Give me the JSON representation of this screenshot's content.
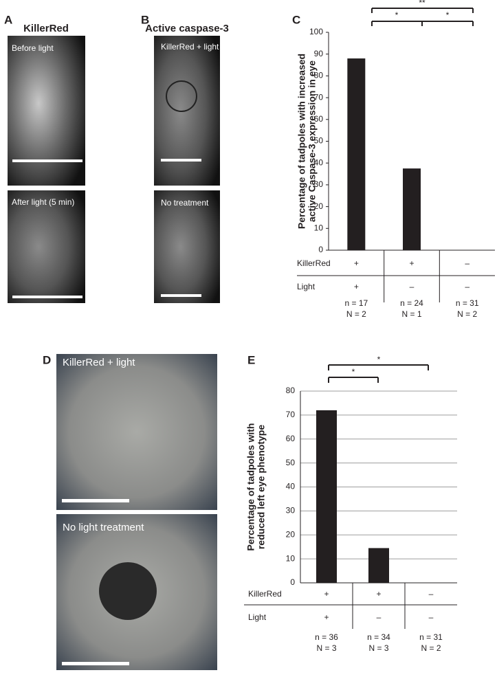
{
  "panels": {
    "A": {
      "label": "A",
      "title": "KillerRed",
      "captions": [
        "Before light",
        "After light (5 min)"
      ]
    },
    "B": {
      "label": "B",
      "title": "Active caspase-3",
      "captions": [
        "KillerRed + light",
        "No treatment"
      ]
    },
    "D": {
      "label": "D",
      "captions": [
        "KillerRed + light",
        "No light treatment"
      ]
    }
  },
  "chart_data": [
    {
      "type": "bar",
      "label": "C",
      "y_label": [
        "Percentage of tadpoles with increased",
        "active Caspase-3 expression in eye"
      ],
      "values": [
        88,
        37.5,
        0
      ],
      "color": "#231f20",
      "ylim": [
        0,
        100
      ],
      "yticks": [
        0,
        10,
        20,
        30,
        40,
        50,
        60,
        70,
        80,
        90,
        100
      ],
      "grid": false,
      "table": [
        {
          "label": "KillerRed",
          "cells": [
            "+",
            "+",
            "–"
          ]
        },
        {
          "label": "Light",
          "cells": [
            "+",
            "–",
            "–"
          ]
        }
      ],
      "n_labels": [
        [
          "n = 17",
          "N = 2"
        ],
        [
          "n = 24",
          "N = 1"
        ],
        [
          "n = 31",
          "N = 2"
        ]
      ],
      "significance": [
        "**",
        "*",
        "*"
      ]
    },
    {
      "type": "bar",
      "label": "E",
      "y_label": [
        "Percentage of tadpoles with",
        "reduced left eye phenotype"
      ],
      "values": [
        72,
        14.5,
        0
      ],
      "color": "#231f20",
      "ylim": [
        0,
        80
      ],
      "yticks": [
        0,
        10,
        20,
        30,
        40,
        50,
        60,
        70,
        80
      ],
      "grid": true,
      "table": [
        {
          "label": "KillerRed",
          "cells": [
            "+",
            "+",
            "–"
          ]
        },
        {
          "label": "Light",
          "cells": [
            "+",
            "–",
            "–"
          ]
        }
      ],
      "n_labels": [
        [
          "n = 36",
          "N = 3"
        ],
        [
          "n = 34",
          "N = 3"
        ],
        [
          "n = 31",
          "N = 2"
        ]
      ],
      "significance": [
        "*",
        "*"
      ]
    }
  ]
}
